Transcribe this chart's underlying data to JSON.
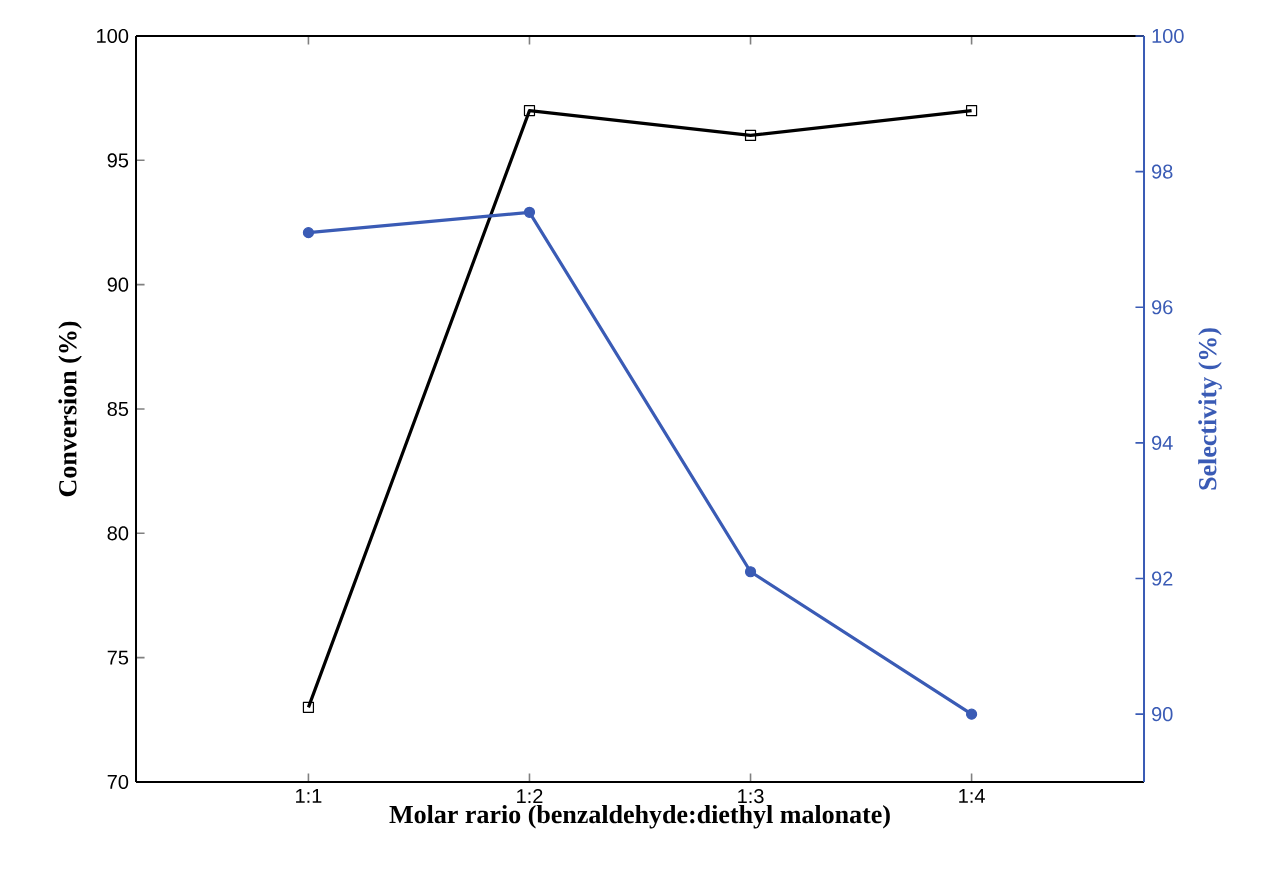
{
  "chart_data": {
    "type": "line",
    "xlabel": "Molar rario (benzaldehyde:diethyl malonate)",
    "ylabel": "Conversion (%)",
    "y2label": "Selectivity (%)",
    "categories": [
      "1:1",
      "1:2",
      "1:3",
      "1:4"
    ],
    "series": [
      {
        "color": "#000000",
        "marker": "square",
        "values": [
          73,
          97,
          96,
          97
        ]
      },
      {
        "color": "#3a5bb5",
        "marker": "circle",
        "axis": "y2",
        "values": [
          97.1,
          97.4,
          92.1,
          90
        ]
      }
    ],
    "ylim": [
      70,
      100
    ],
    "yticks": [
      70,
      75,
      80,
      85,
      90,
      95,
      100
    ],
    "y2lim": [
      89,
      100
    ],
    "y2ticks": [
      90,
      92,
      94,
      96,
      98,
      100
    ],
    "line_style": "solid"
  }
}
